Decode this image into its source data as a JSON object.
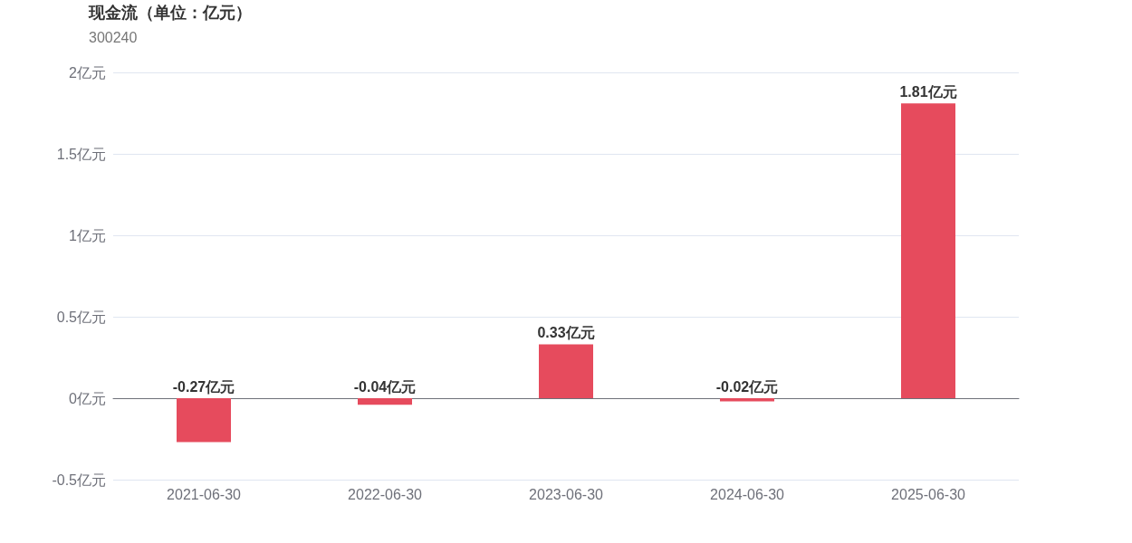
{
  "chart_data": {
    "type": "bar",
    "title": "现金流（单位：亿元）",
    "subtitle": "300240",
    "categories": [
      "2021-06-30",
      "2022-06-30",
      "2023-06-30",
      "2024-06-30",
      "2025-06-30"
    ],
    "values": [
      -0.27,
      -0.04,
      0.33,
      -0.02,
      1.81
    ],
    "value_labels": [
      "-0.27亿元",
      "-0.04亿元",
      "0.33亿元",
      "-0.02亿元",
      "1.81亿元"
    ],
    "color": "#e64b5d",
    "ylim": [
      -0.5,
      2
    ],
    "yticks": [
      {
        "value": -0.5,
        "label": "-0.5亿元"
      },
      {
        "value": 0,
        "label": "0亿元"
      },
      {
        "value": 0.5,
        "label": "0.5亿元"
      },
      {
        "value": 1,
        "label": "1亿元"
      },
      {
        "value": 1.5,
        "label": "1.5亿元"
      },
      {
        "value": 2,
        "label": "2亿元"
      }
    ],
    "grid": "y"
  }
}
